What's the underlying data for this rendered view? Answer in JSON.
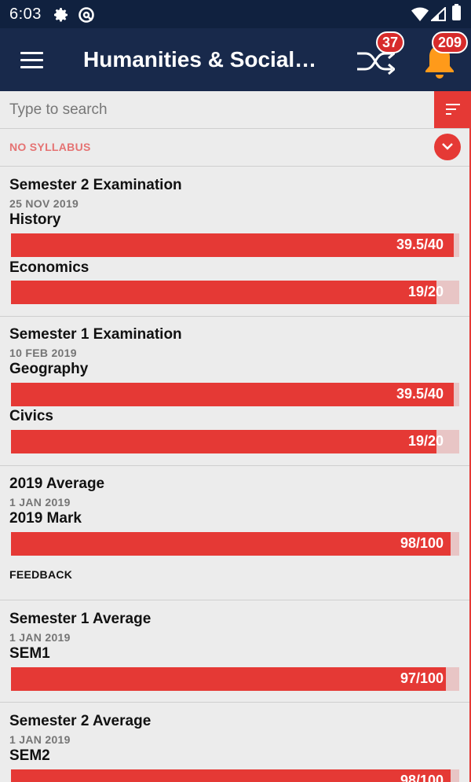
{
  "statusbar": {
    "time": "6:03"
  },
  "appbar": {
    "title": "Humanities & Social…",
    "shuffle_badge": "37",
    "notification_badge": "209"
  },
  "search": {
    "placeholder": "Type to search"
  },
  "syllabus": {
    "label": "NO SYLLABUS"
  },
  "colors": {
    "accent": "#e53935",
    "header": "#18294b",
    "status_bar": "#10213f",
    "bar_track": "#e8c5c5"
  },
  "records": [
    {
      "title": "Semester 2 Examination",
      "date": "25 NOV 2019",
      "subjects": [
        {
          "name": "History",
          "score": "39.5/40",
          "fraction": 0.9875
        },
        {
          "name": "Economics",
          "score": "19/20",
          "fraction": 0.95
        }
      ]
    },
    {
      "title": "Semester 1 Examination",
      "date": "10 FEB 2019",
      "subjects": [
        {
          "name": "Geography",
          "score": "39.5/40",
          "fraction": 0.9875
        },
        {
          "name": "Civics",
          "score": "19/20",
          "fraction": 0.95
        }
      ]
    },
    {
      "title": "2019 Average",
      "date": "1 JAN 2019",
      "subjects": [
        {
          "name": "2019 Mark",
          "score": "98/100",
          "fraction": 0.98
        }
      ],
      "feedback": "FEEDBACK"
    },
    {
      "title": "Semester 1 Average",
      "date": "1 JAN 2019",
      "subjects": [
        {
          "name": "SEM1",
          "score": "97/100",
          "fraction": 0.97
        }
      ]
    },
    {
      "title": "Semester 2 Average",
      "date": "1 JAN 2019",
      "subjects": [
        {
          "name": "SEM2",
          "score": "98/100",
          "fraction": 0.98
        }
      ]
    }
  ]
}
